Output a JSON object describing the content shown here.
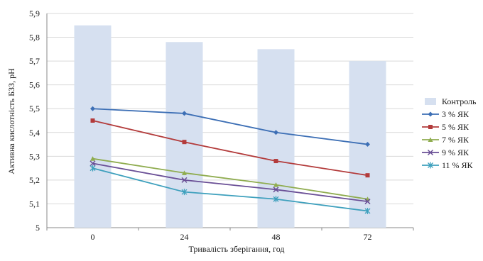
{
  "chart_data": {
    "type": "bar",
    "xlabel": "Тривалість зберігання, год",
    "ylabel": "Активна кислотність БЗЗ, pH",
    "categories": [
      "0",
      "24",
      "48",
      "72"
    ],
    "ylim": [
      5,
      5.9
    ],
    "ytick_step": 0.1,
    "yticks": [
      "5",
      "5,1",
      "5,2",
      "5,3",
      "5,4",
      "5,5",
      "5,6",
      "5,7",
      "5,8",
      "5,9"
    ],
    "grid": true,
    "legend_position": "right",
    "series": [
      {
        "name": "Контроль",
        "kind": "bar",
        "color": "#d6e0f0",
        "marker": "square",
        "values": [
          5.85,
          5.78,
          5.75,
          5.7
        ]
      },
      {
        "name": "3 % ЯК",
        "kind": "line",
        "color": "#3d6fb5",
        "marker": "diamond",
        "values": [
          5.5,
          5.48,
          5.4,
          5.35
        ]
      },
      {
        "name": "5 % ЯК",
        "kind": "line",
        "color": "#b33b3b",
        "marker": "square",
        "values": [
          5.45,
          5.36,
          5.28,
          5.22
        ]
      },
      {
        "name": "7 % ЯК",
        "kind": "line",
        "color": "#8fac4f",
        "marker": "triangle",
        "values": [
          5.29,
          5.23,
          5.18,
          5.12
        ]
      },
      {
        "name": "9 % ЯК",
        "kind": "line",
        "color": "#6a4f96",
        "marker": "x",
        "values": [
          5.27,
          5.2,
          5.16,
          5.11
        ]
      },
      {
        "name": "11 % ЯК",
        "kind": "line",
        "color": "#3ea0bd",
        "marker": "star",
        "values": [
          5.25,
          5.15,
          5.12,
          5.07
        ]
      }
    ]
  }
}
